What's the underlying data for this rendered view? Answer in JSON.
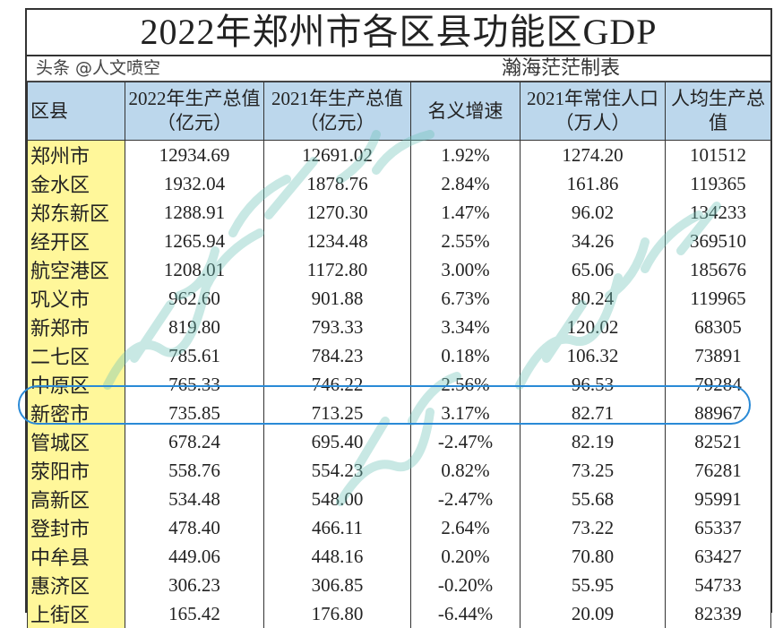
{
  "title": "2022年郑州市各区县功能区GDP",
  "subtitle": "瀚海茫茫制表",
  "headers": [
    "区县",
    "2022年生产总值（亿元）",
    "2021年生产总值（亿元）",
    "名义增速",
    "2021年常住人口（万人）",
    "人均生产总值"
  ],
  "rows": [
    [
      "郑州市",
      "12934.69",
      "12691.02",
      "1.92%",
      "1274.20",
      "101512"
    ],
    [
      "金水区",
      "1932.04",
      "1878.76",
      "2.84%",
      "161.86",
      "119365"
    ],
    [
      "郑东新区",
      "1288.91",
      "1270.30",
      "1.47%",
      "96.02",
      "134233"
    ],
    [
      "经开区",
      "1265.94",
      "1234.48",
      "2.55%",
      "34.26",
      "369510"
    ],
    [
      "航空港区",
      "1208.01",
      "1172.80",
      "3.00%",
      "65.06",
      "185676"
    ],
    [
      "巩义市",
      "962.60",
      "901.88",
      "6.73%",
      "80.24",
      "119965"
    ],
    [
      "新郑市",
      "819.80",
      "793.33",
      "3.34%",
      "120.02",
      "68305"
    ],
    [
      "二七区",
      "785.61",
      "784.23",
      "0.18%",
      "106.32",
      "73891"
    ],
    [
      "中原区",
      "765.33",
      "746.22",
      "2.56%",
      "96.53",
      "79284"
    ],
    [
      "新密市",
      "735.85",
      "713.25",
      "3.17%",
      "82.71",
      "88967"
    ],
    [
      "管城区",
      "678.24",
      "695.40",
      "-2.47%",
      "82.19",
      "82521"
    ],
    [
      "荥阳市",
      "558.76",
      "554.23",
      "0.82%",
      "73.25",
      "76281"
    ],
    [
      "高新区",
      "534.48",
      "548.00",
      "-2.47%",
      "55.68",
      "95991"
    ],
    [
      "登封市",
      "478.40",
      "466.11",
      "2.64%",
      "73.22",
      "65337"
    ],
    [
      "中牟县",
      "449.06",
      "448.16",
      "0.20%",
      "70.80",
      "63427"
    ],
    [
      "惠济区",
      "306.23",
      "306.85",
      "-0.20%",
      "55.95",
      "54733"
    ],
    [
      "上街区",
      "165.42",
      "176.80",
      "-6.44%",
      "20.09",
      "82339"
    ]
  ],
  "highlighted_row": "新密市",
  "watermark": "瀚海茫茫",
  "credit": "头条 @人文喷空",
  "colors": {
    "header_bg": "#bcd7ec",
    "name_col_bg": "#fff79a",
    "highlight_oval": "#2a8ad6"
  }
}
